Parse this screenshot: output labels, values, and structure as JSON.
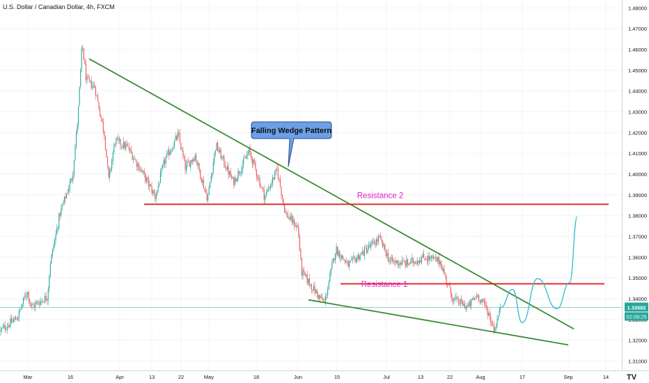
{
  "chart_data": {
    "type": "candlestick",
    "title": "U.S. Dollar / Canadian Dollar, 4h, FXCM",
    "y_axis": {
      "ticks": [
        "1.48000",
        "1.47000",
        "1.46000",
        "1.45000",
        "1.44000",
        "1.43000",
        "1.42000",
        "1.41000",
        "1.40000",
        "1.39000",
        "1.38000",
        "1.37000",
        "1.36000",
        "1.35000",
        "1.34000",
        "1.33000",
        "1.32000",
        "1.31000"
      ],
      "ylim": [
        1.3055,
        1.4838
      ]
    },
    "x_axis": {
      "ticks": [
        "Mar",
        "16",
        "Apr",
        "13",
        "22",
        "May",
        "18",
        "Jun",
        "15",
        "Jul",
        "13",
        "22",
        "Aug",
        "17",
        "Sep",
        "14"
      ]
    },
    "price_label": {
      "value": "1.33582",
      "color": "#26a69a"
    },
    "countdown_label": {
      "value": "02:09:25",
      "color": "#26a69a"
    },
    "price_line": 1.33582,
    "candles": {
      "up_color": "#26a69a",
      "down_color": "#ef5350",
      "anchors": [
        {
          "x": 0,
          "y": 1.3245
        },
        {
          "x": 25,
          "y": 1.331
        },
        {
          "x": 39,
          "y": 1.344
        },
        {
          "x": 45,
          "y": 1.336
        },
        {
          "x": 68,
          "y": 1.341
        },
        {
          "x": 72,
          "y": 1.357
        },
        {
          "x": 86,
          "y": 1.381
        },
        {
          "x": 104,
          "y": 1.399
        },
        {
          "x": 112,
          "y": 1.428
        },
        {
          "x": 118,
          "y": 1.463
        },
        {
          "x": 124,
          "y": 1.445
        },
        {
          "x": 136,
          "y": 1.442
        },
        {
          "x": 150,
          "y": 1.419
        },
        {
          "x": 156,
          "y": 1.397
        },
        {
          "x": 165,
          "y": 1.416
        },
        {
          "x": 183,
          "y": 1.413
        },
        {
          "x": 204,
          "y": 1.401
        },
        {
          "x": 223,
          "y": 1.389
        },
        {
          "x": 236,
          "y": 1.406
        },
        {
          "x": 256,
          "y": 1.419
        },
        {
          "x": 266,
          "y": 1.403
        },
        {
          "x": 280,
          "y": 1.409
        },
        {
          "x": 298,
          "y": 1.388
        },
        {
          "x": 310,
          "y": 1.414
        },
        {
          "x": 335,
          "y": 1.396
        },
        {
          "x": 358,
          "y": 1.411
        },
        {
          "x": 380,
          "y": 1.389
        },
        {
          "x": 398,
          "y": 1.402
        },
        {
          "x": 410,
          "y": 1.381
        },
        {
          "x": 428,
          "y": 1.374
        },
        {
          "x": 433,
          "y": 1.353
        },
        {
          "x": 458,
          "y": 1.341
        },
        {
          "x": 466,
          "y": 1.338
        },
        {
          "x": 482,
          "y": 1.364
        },
        {
          "x": 500,
          "y": 1.356
        },
        {
          "x": 520,
          "y": 1.362
        },
        {
          "x": 545,
          "y": 1.369
        },
        {
          "x": 560,
          "y": 1.358
        },
        {
          "x": 585,
          "y": 1.357
        },
        {
          "x": 610,
          "y": 1.36
        },
        {
          "x": 632,
          "y": 1.358
        },
        {
          "x": 650,
          "y": 1.34
        },
        {
          "x": 672,
          "y": 1.336
        },
        {
          "x": 685,
          "y": 1.342
        },
        {
          "x": 698,
          "y": 1.336
        },
        {
          "x": 710,
          "y": 1.325
        },
        {
          "x": 719,
          "y": 1.3358
        }
      ]
    },
    "overlays": {
      "lines": [
        {
          "name": "wedge-upper-trendline",
          "color": "#3d8b37",
          "x1": 128,
          "y1": 1.4555,
          "x2": 824,
          "y2": 1.3255
        },
        {
          "name": "wedge-lower-trendline",
          "color": "#3d8b37",
          "x1": 443,
          "y1": 1.3395,
          "x2": 816,
          "y2": 1.3178
        },
        {
          "name": "resistance-2-line",
          "color": "#e02020",
          "x1": 207,
          "y1": 1.3855,
          "x2": 874,
          "y2": 1.3855
        },
        {
          "name": "resistance-1-line",
          "color": "#e02020",
          "x1": 489,
          "y1": 1.3472,
          "x2": 868,
          "y2": 1.3472
        }
      ],
      "projection": {
        "color": "#3bbfd4",
        "points": [
          {
            "x": 719,
            "y": 1.3358
          },
          {
            "x": 736,
            "y": 1.3445
          },
          {
            "x": 750,
            "y": 1.3285
          },
          {
            "x": 772,
            "y": 1.3497
          },
          {
            "x": 800,
            "y": 1.3352
          },
          {
            "x": 818,
            "y": 1.3478
          },
          {
            "x": 829,
            "y": 1.3795
          }
        ]
      },
      "labels": [
        {
          "name": "resistance-2-label",
          "text": "Resistance 2",
          "color": "#e020c8",
          "x": 546,
          "y": 1.3885
        },
        {
          "name": "resistance-1-label",
          "text": "Resistance 1",
          "color": "#e020c8",
          "x": 552,
          "y": 1.3458
        }
      ],
      "callout": {
        "text": "Falling Wedge Pattern",
        "fill": "#6b9fe8",
        "pointer_x": 414,
        "pointer_y": 1.4035
      }
    }
  }
}
